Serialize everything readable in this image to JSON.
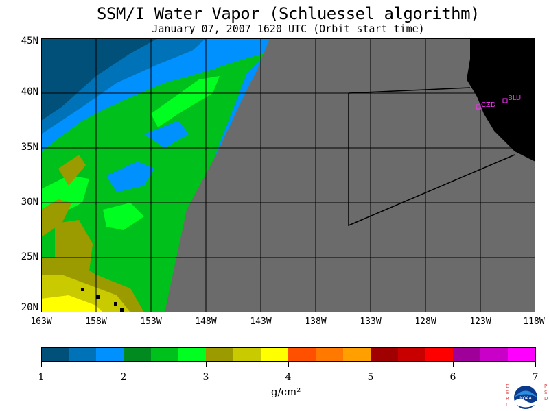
{
  "title": "SSM/I Water Vapor (Schluessel algorithm)",
  "subtitle": "January 07, 2007  1620 UTC  (Orbit start time)",
  "map": {
    "lat_labels": [
      "45N",
      "40N",
      "35N",
      "30N",
      "25N",
      "20N"
    ],
    "lon_labels": [
      "163W",
      "158W",
      "153W",
      "148W",
      "143W",
      "138W",
      "133W",
      "128W",
      "123W",
      "118W"
    ],
    "stations": [
      {
        "name": "CZD",
        "lat": 38.6,
        "lon": -123.2
      },
      {
        "name": "BLU",
        "lat": 39.3,
        "lon": -120.8
      }
    ],
    "colors": {
      "no_data": "#6b6b6b",
      "land": "#000000",
      "grid": "#000000",
      "station": "#ff33ff"
    }
  },
  "colorbar": {
    "ticks": [
      "1",
      "2",
      "3",
      "4",
      "5",
      "6",
      "7"
    ],
    "units": "g/cm²",
    "colors": [
      "#00507a",
      "#0073b8",
      "#0091ff",
      "#008a20",
      "#00c01c",
      "#00ff20",
      "#9b9b00",
      "#caca00",
      "#ffff00",
      "#ff5000",
      "#ff7800",
      "#ffa000",
      "#a00000",
      "#c80000",
      "#ff0000",
      "#a0009a",
      "#c800c8",
      "#ff00ff"
    ]
  },
  "logo": {
    "left_text": "ESRL",
    "right_text": "PSD",
    "center_text": "NOAA"
  }
}
